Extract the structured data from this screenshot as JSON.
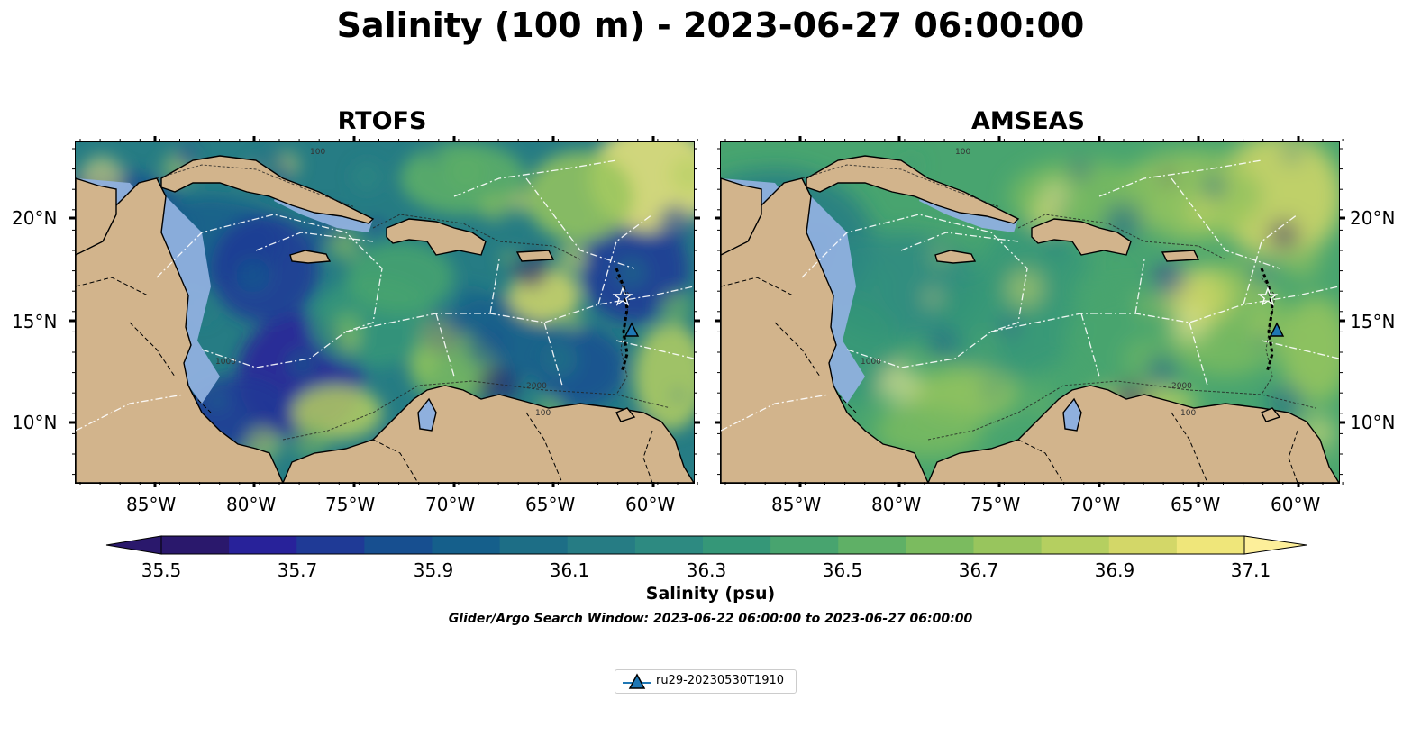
{
  "title": "Salinity (100 m) - 2023-06-27 06:00:00",
  "panels": [
    {
      "title": "RTOFS",
      "field": "salinity-high-contrast"
    },
    {
      "title": "AMSEAS",
      "field": "salinity-smooth"
    }
  ],
  "lon_labels": [
    "85°W",
    "80°W",
    "75°W",
    "70°W",
    "65°W",
    "60°W"
  ],
  "lat_labels": [
    "20°N",
    "15°N",
    "10°N"
  ],
  "map_extent": {
    "lon": [
      -89,
      -58
    ],
    "lat": [
      7,
      24
    ]
  },
  "contour_labels": [
    "100",
    "1000",
    "2000"
  ],
  "colorbar": {
    "label": "Salinity (psu)",
    "ticks": [
      "35.5",
      "35.7",
      "35.9",
      "36.1",
      "36.3",
      "36.5",
      "36.7",
      "36.9",
      "37.1"
    ],
    "levels": [
      35.5,
      35.6,
      35.7,
      35.8,
      35.9,
      36.0,
      36.1,
      36.2,
      36.3,
      36.4,
      36.5,
      36.6,
      36.7,
      36.8,
      36.9,
      37.0,
      37.1
    ],
    "extend": "both",
    "colormap": "haline",
    "colors": [
      "#2a186c",
      "#28229a",
      "#1f3a96",
      "#174f90",
      "#155f8b",
      "#1d6e86",
      "#267c84",
      "#2d8a81",
      "#359778",
      "#48a46f",
      "#5fb066",
      "#7bbb5f",
      "#98c55d",
      "#b5cf60",
      "#d3d768",
      "#efe67a",
      "#fdef9a"
    ]
  },
  "search_window": "Glider/Argo Search Window: 2023-06-22 06:00:00 to 2023-06-27 06:00:00",
  "legend": {
    "label": "ru29-20230530T1910",
    "marker": "triangle-icon",
    "color": "#1f77b4"
  },
  "land_color": "#d2b48c",
  "shelf_color": "#8fb0de"
}
